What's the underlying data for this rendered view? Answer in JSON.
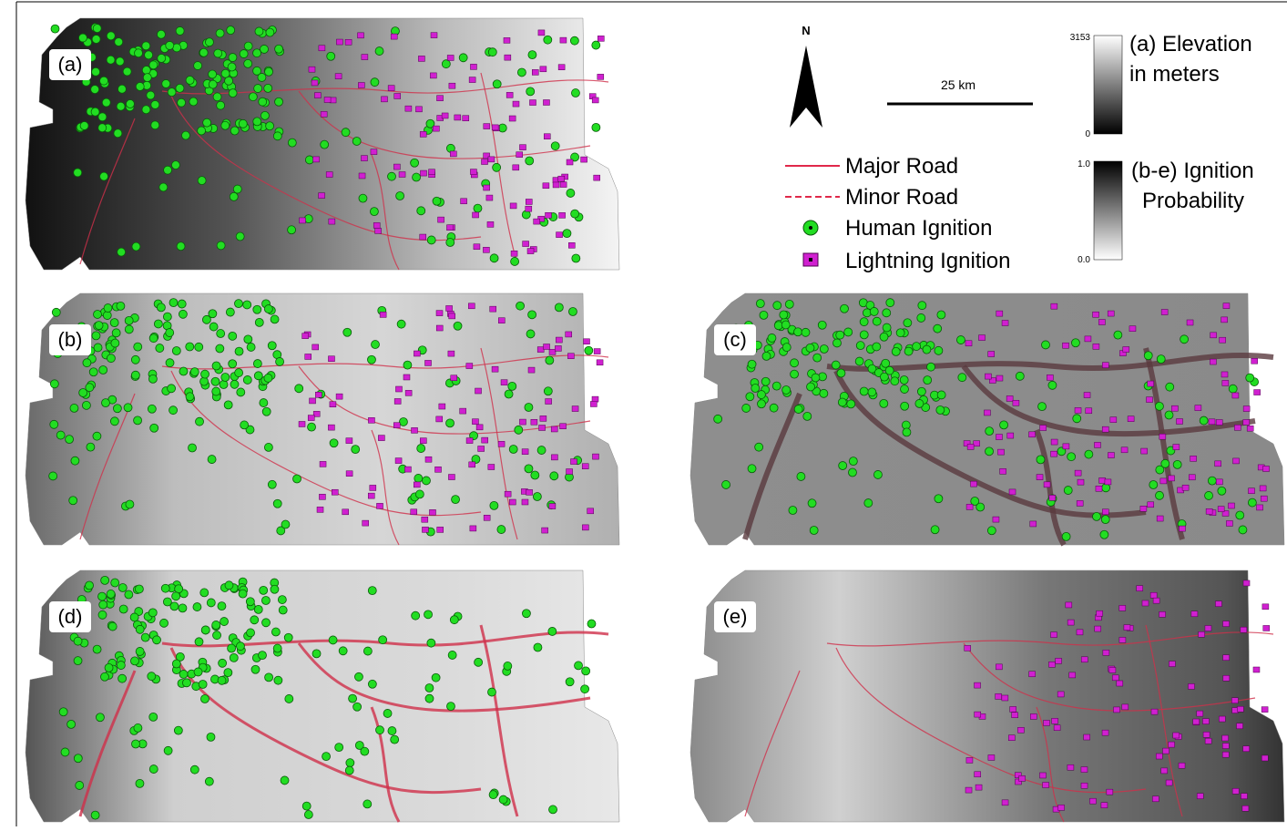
{
  "panels": [
    {
      "label": "(a)"
    },
    {
      "label": "(b)"
    },
    {
      "label": "(c)"
    },
    {
      "label": "(d)"
    },
    {
      "label": "(e)"
    }
  ],
  "legend": {
    "north": "N",
    "scale": "25 km",
    "items": [
      "Major Road",
      "Minor Road",
      "Human Ignition",
      "Lightning Ignition"
    ]
  },
  "colorbars": [
    {
      "title_lines": [
        "(a) Elevation",
        "in meters"
      ],
      "max": "3153",
      "min": "0"
    },
    {
      "title_lines": [
        "(b-e) Ignition",
        "Probability"
      ],
      "max": "1.0",
      "min": "0.0"
    }
  ]
}
